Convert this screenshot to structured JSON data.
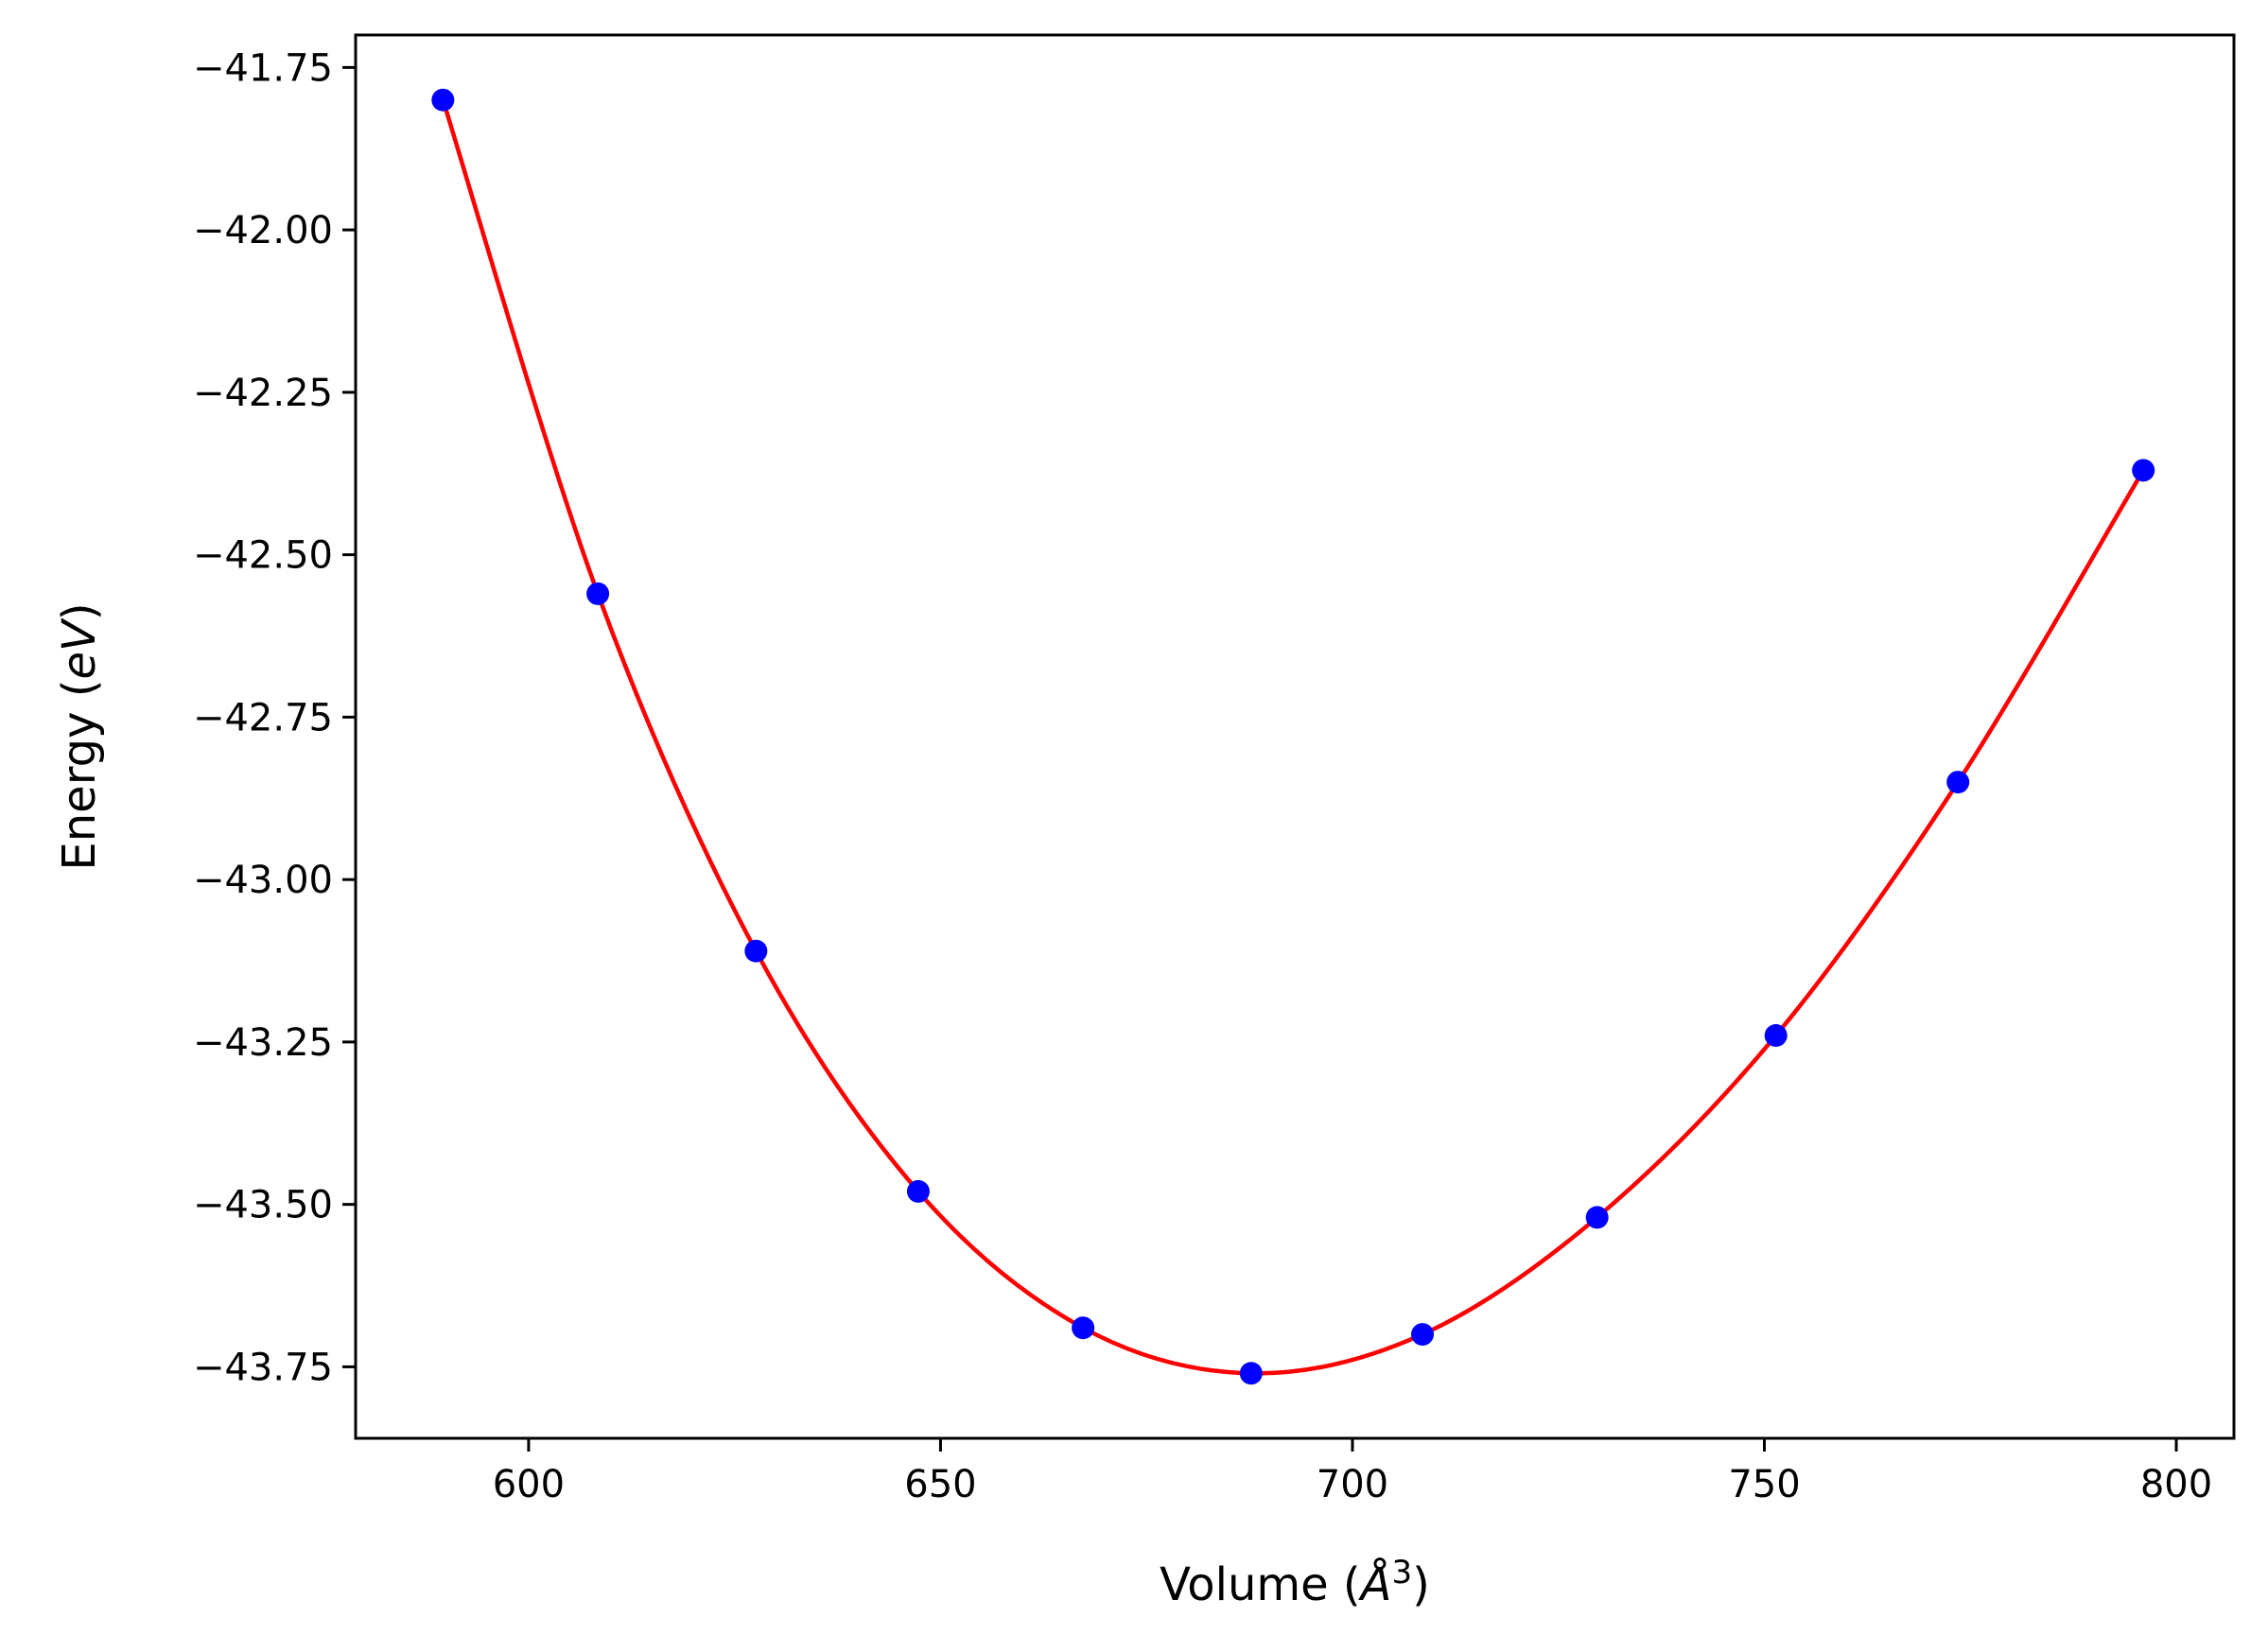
{
  "chart_data": {
    "type": "scatter",
    "xlabel": "Volume",
    "xlabel_unit": "Å",
    "xlabel_unit_exponent": "3",
    "ylabel": "Energy",
    "ylabel_unit": "eV",
    "xlim": [
      579,
      807
    ],
    "ylim": [
      -43.86,
      -41.7
    ],
    "xticks": [
      600,
      650,
      700,
      750,
      800
    ],
    "xtick_labels": [
      "600",
      "650",
      "700",
      "750",
      "800"
    ],
    "yticks": [
      -41.75,
      -42.0,
      -42.25,
      -42.5,
      -42.75,
      -43.0,
      -43.25,
      -43.5,
      -43.75
    ],
    "ytick_labels": [
      "−41.75",
      "−42.00",
      "−42.25",
      "−42.50",
      "−42.75",
      "−43.00",
      "−43.25",
      "−43.50",
      "−43.75"
    ],
    "grid": false,
    "series": [
      {
        "kind": "points",
        "color": "#0000ff",
        "x": [
          589.6,
          608.4,
          627.6,
          647.3,
          667.3,
          687.7,
          708.5,
          729.7,
          751.4,
          773.5,
          796.0
        ],
        "y": [
          -41.8,
          -42.56,
          -43.11,
          -43.48,
          -43.69,
          -43.76,
          -43.7,
          -43.52,
          -43.24,
          -42.85,
          -42.37
        ]
      },
      {
        "kind": "fit-curve",
        "color": "#ff0000",
        "x": [
          589.6,
          608.4,
          627.6,
          647.3,
          667.3,
          687.7,
          708.5,
          729.7,
          751.4,
          773.5,
          796.0
        ],
        "y": [
          -41.8,
          -42.56,
          -43.11,
          -43.48,
          -43.69,
          -43.76,
          -43.7,
          -43.52,
          -43.24,
          -42.85,
          -42.37
        ]
      }
    ]
  }
}
